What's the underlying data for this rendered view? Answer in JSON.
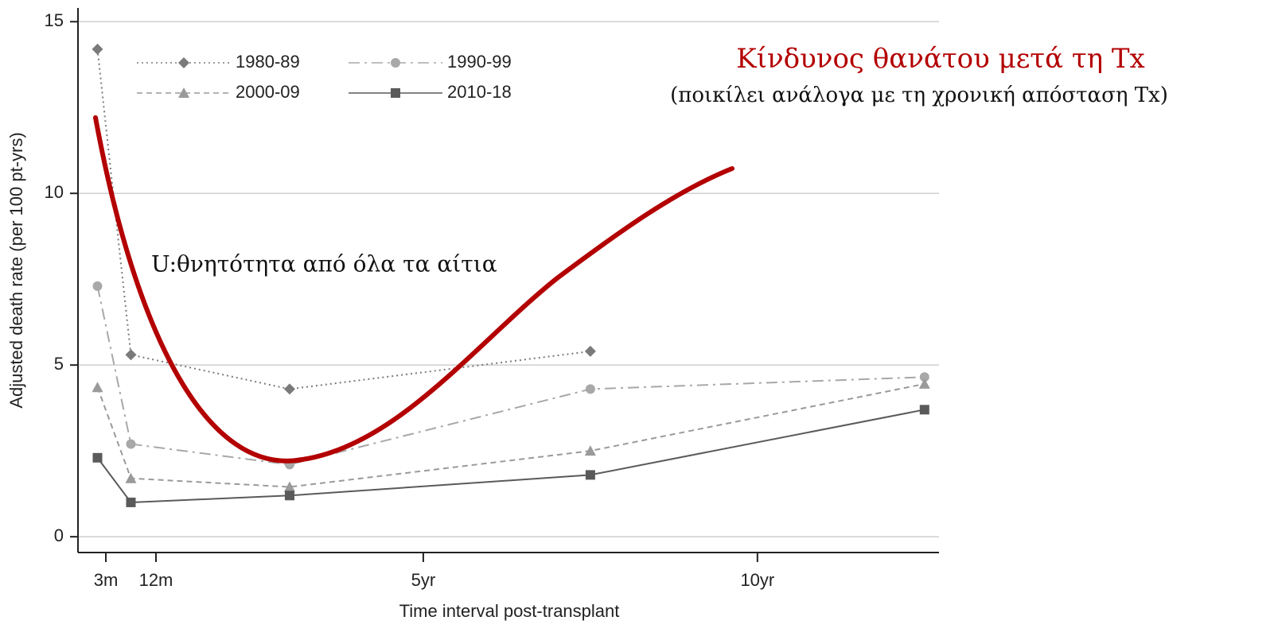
{
  "chart_data": {
    "type": "line",
    "title": "Κίνδυνος θανάτου μετά τη Tx",
    "subtitle": "(ποικίλει ανάλογα με τη χρονική απόσταση Tx)",
    "annotation": "U:θνητότητα από όλα τα αίτια",
    "x_label": "Time interval post-transplant",
    "y_label": "Adjusted death rate (per 100 pt-yrs)",
    "x": [
      1.5,
      7.5,
      36,
      90,
      150
    ],
    "xlim": [
      -2,
      152.6
    ],
    "xticks": [
      {
        "value": 3,
        "label": "3m"
      },
      {
        "value": 12,
        "label": "12m"
      },
      {
        "value": 60,
        "label": "5yr"
      },
      {
        "value": 120,
        "label": "10yr"
      }
    ],
    "ylim": [
      -0.46,
      15.4
    ],
    "yticks": [
      0,
      5,
      10,
      15
    ],
    "grid": true,
    "series": [
      {
        "name": "1980-89",
        "color": "#7a7a7a",
        "marker": "diamond",
        "dash": "dotted",
        "values": [
          14.2,
          5.3,
          4.3,
          5.4,
          null
        ]
      },
      {
        "name": "1990-99",
        "color": "#a8a8a8",
        "marker": "circle",
        "dash": "dashdot",
        "values": [
          7.3,
          2.7,
          2.1,
          4.3,
          4.65
        ]
      },
      {
        "name": "2000-09",
        "color": "#9a9a9a",
        "marker": "triangle",
        "dash": "dashed",
        "values": [
          4.35,
          1.7,
          1.45,
          2.5,
          4.45
        ]
      },
      {
        "name": "2010-18",
        "color": "#5a5a5a",
        "marker": "square",
        "dash": "solid",
        "values": [
          2.3,
          1.0,
          1.2,
          1.8,
          3.7
        ]
      }
    ]
  }
}
